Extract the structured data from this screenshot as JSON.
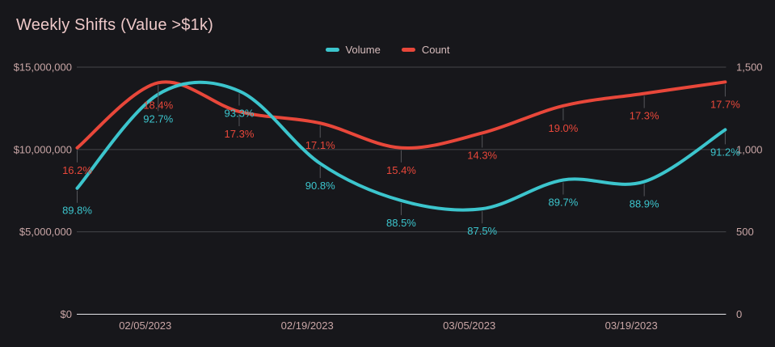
{
  "panel": {
    "background": "#17171b"
  },
  "header": {
    "title": "Weekly Shifts (Value >$1k)"
  },
  "chart_data": {
    "type": "line",
    "title": "Weekly Shifts (Value >$1k)",
    "legend": {
      "position": "top-center",
      "entries": [
        "Volume",
        "Count"
      ]
    },
    "grid": {
      "horizontal": true,
      "vertical": false
    },
    "x_axis": {
      "num_points": 9,
      "tick_labels": [
        "02/05/2023",
        "02/19/2023",
        "03/05/2023",
        "03/19/2023"
      ],
      "tick_point_indices": [
        1,
        3,
        5,
        7
      ]
    },
    "left_axis": {
      "series": "Volume",
      "min": 0,
      "max": 15000000,
      "tick_values": [
        0,
        5000000,
        10000000,
        15000000
      ],
      "tick_labels": [
        "$0",
        "$5,000,000",
        "$10,000,000",
        "$15,000,000"
      ]
    },
    "right_axis": {
      "series": "Count",
      "min": 0,
      "max": 1500,
      "tick_values": [
        0,
        500,
        1000,
        1500
      ],
      "tick_labels": [
        "0",
        "500",
        "1,000",
        "1,500"
      ]
    },
    "series": [
      {
        "name": "Volume",
        "axis": "left",
        "color": "#3cc5cd",
        "values": [
          7650000,
          13350000,
          13550000,
          9150000,
          6900000,
          6400000,
          8150000,
          8050000,
          11200000
        ],
        "point_labels": [
          "89.8%",
          "92.7%",
          "93.3%",
          "90.8%",
          "88.5%",
          "87.5%",
          "89.7%",
          "88.9%",
          "91.2%"
        ]
      },
      {
        "name": "Count",
        "axis": "right",
        "color": "#e8473a",
        "values": [
          1010,
          1405,
          1230,
          1160,
          1010,
          1100,
          1265,
          1340,
          1410
        ],
        "point_labels": [
          "16.2%",
          "18.4%",
          "17.3%",
          "17.1%",
          "15.4%",
          "14.3%",
          "19.0%",
          "17.3%",
          "17.7%"
        ]
      }
    ],
    "colors": {
      "background": "#17171b",
      "title_text": "#edc8c8",
      "axis_text": "#c9a6a6",
      "legend_text": "#d6bcbc",
      "grid_line": "#45464a",
      "zero_axis_line": "#e4e4e8",
      "leader_line": "#55565b"
    }
  }
}
